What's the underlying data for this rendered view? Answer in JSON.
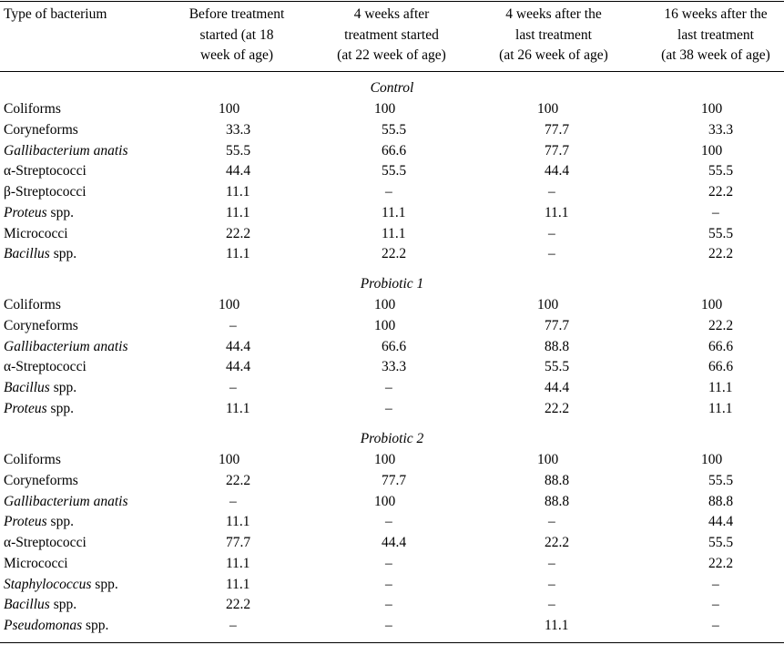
{
  "headers": [
    "Type of bacterium",
    "Before treatment\nstarted (at 18\nweek of age)",
    "4 weeks after\ntreatment started\n(at 22 week of age)",
    "4 weeks after the\nlast treatment\n(at 26 week of age)",
    "16 weeks after the\nlast treatment\n(at 38 week of age)"
  ],
  "sections": [
    {
      "title": "Control",
      "rows": [
        {
          "parts": [
            {
              "t": "Coliforms",
              "i": false
            }
          ],
          "values": [
            "100",
            "100",
            "100",
            "100"
          ]
        },
        {
          "parts": [
            {
              "t": "Coryneforms",
              "i": false
            }
          ],
          "values": [
            "33.3",
            "55.5",
            "77.7",
            "33.3"
          ]
        },
        {
          "parts": [
            {
              "t": "Gallibacterium anatis",
              "i": true
            }
          ],
          "values": [
            "55.5",
            "66.6",
            "77.7",
            "100"
          ]
        },
        {
          "parts": [
            {
              "t": "α-Streptococci",
              "i": false
            }
          ],
          "values": [
            "44.4",
            "55.5",
            "44.4",
            "55.5"
          ]
        },
        {
          "parts": [
            {
              "t": "β-Streptococci",
              "i": false
            }
          ],
          "values": [
            "11.1",
            "–",
            "–",
            "22.2"
          ]
        },
        {
          "parts": [
            {
              "t": "Proteus",
              "i": true
            },
            {
              "t": " spp.",
              "i": false
            }
          ],
          "values": [
            "11.1",
            "11.1",
            "11.1",
            "–"
          ]
        },
        {
          "parts": [
            {
              "t": "Micrococci",
              "i": false
            }
          ],
          "values": [
            "22.2",
            "11.1",
            "–",
            "55.5"
          ]
        },
        {
          "parts": [
            {
              "t": "Bacillus",
              "i": true
            },
            {
              "t": " spp.",
              "i": false
            }
          ],
          "values": [
            "11.1",
            "22.2",
            "–",
            "22.2"
          ]
        }
      ]
    },
    {
      "title": "Probiotic 1",
      "rows": [
        {
          "parts": [
            {
              "t": "Coliforms",
              "i": false
            }
          ],
          "values": [
            "100",
            "100",
            "100",
            "100"
          ]
        },
        {
          "parts": [
            {
              "t": "Coryneforms",
              "i": false
            }
          ],
          "values": [
            "–",
            "100",
            "77.7",
            "22.2"
          ]
        },
        {
          "parts": [
            {
              "t": "Gallibacterium anatis",
              "i": true
            }
          ],
          "values": [
            "44.4",
            "66.6",
            "88.8",
            "66.6"
          ]
        },
        {
          "parts": [
            {
              "t": "α-Streptococci",
              "i": false
            }
          ],
          "values": [
            "44.4",
            "33.3",
            "55.5",
            "66.6"
          ]
        },
        {
          "parts": [
            {
              "t": "Bacillus",
              "i": true
            },
            {
              "t": " spp.",
              "i": false
            }
          ],
          "values": [
            "–",
            "–",
            "44.4",
            "11.1"
          ]
        },
        {
          "parts": [
            {
              "t": "Proteus",
              "i": true
            },
            {
              "t": " spp.",
              "i": false
            }
          ],
          "values": [
            "11.1",
            "–",
            "22.2",
            "11.1"
          ]
        }
      ]
    },
    {
      "title": "Probiotic 2",
      "rows": [
        {
          "parts": [
            {
              "t": "Coliforms",
              "i": false
            }
          ],
          "values": [
            "100",
            "100",
            "100",
            "100"
          ]
        },
        {
          "parts": [
            {
              "t": "Coryneforms",
              "i": false
            }
          ],
          "values": [
            "22.2",
            "77.7",
            "88.8",
            "55.5"
          ]
        },
        {
          "parts": [
            {
              "t": "Gallibacterium anatis",
              "i": true
            }
          ],
          "values": [
            "–",
            "100",
            "88.8",
            "88.8"
          ]
        },
        {
          "parts": [
            {
              "t": "Proteus",
              "i": true
            },
            {
              "t": " spp.",
              "i": false
            }
          ],
          "values": [
            "11.1",
            "–",
            "–",
            "44.4"
          ]
        },
        {
          "parts": [
            {
              "t": "α-Streptococci",
              "i": false
            }
          ],
          "values": [
            "77.7",
            "44.4",
            "22.2",
            "55.5"
          ]
        },
        {
          "parts": [
            {
              "t": "Micrococci",
              "i": false
            }
          ],
          "values": [
            "11.1",
            "–",
            "–",
            "22.2"
          ]
        },
        {
          "parts": [
            {
              "t": "Staphylococcus",
              "i": true
            },
            {
              "t": " spp.",
              "i": false
            }
          ],
          "values": [
            "11.1",
            "–",
            "–",
            "–"
          ]
        },
        {
          "parts": [
            {
              "t": "Bacillus",
              "i": true
            },
            {
              "t": " spp.",
              "i": false
            }
          ],
          "values": [
            "22.2",
            "–",
            "–",
            "–"
          ]
        },
        {
          "parts": [
            {
              "t": "Pseudomonas",
              "i": true
            },
            {
              "t": " spp.",
              "i": false
            }
          ],
          "values": [
            "–",
            "–",
            "11.1",
            "–"
          ]
        }
      ]
    }
  ]
}
